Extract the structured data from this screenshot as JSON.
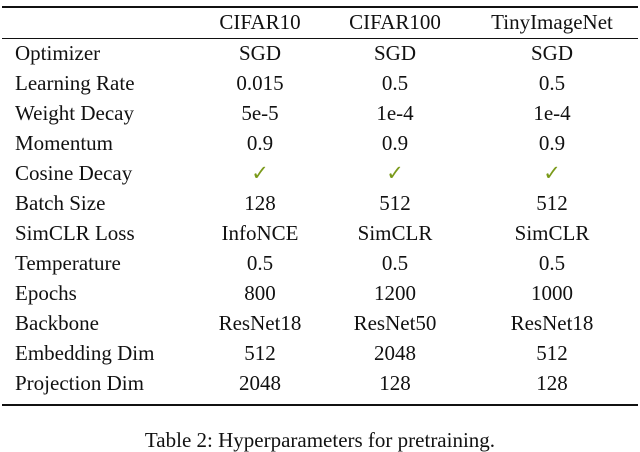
{
  "table": {
    "columns": [
      "CIFAR10",
      "CIFAR100",
      "TinyImageNet"
    ],
    "rows": [
      [
        "Optimizer",
        "SGD",
        "SGD",
        "SGD"
      ],
      [
        "Learning Rate",
        "0.015",
        "0.5",
        "0.5"
      ],
      [
        "Weight Decay",
        "5e-5",
        "1e-4",
        "1e-4"
      ],
      [
        "Momentum",
        "0.9",
        "0.9",
        "0.9"
      ],
      [
        "Cosine Decay",
        "✓",
        "✓",
        "✓"
      ],
      [
        "Batch Size",
        "128",
        "512",
        "512"
      ],
      [
        "SimCLR Loss",
        "InfoNCE",
        "SimCLR",
        "SimCLR"
      ],
      [
        "Temperature",
        "0.5",
        "0.5",
        "0.5"
      ],
      [
        "Epochs",
        "800",
        "1200",
        "1000"
      ],
      [
        "Backbone",
        "ResNet18",
        "ResNet50",
        "ResNet18"
      ],
      [
        "Embedding Dim",
        "512",
        "2048",
        "512"
      ],
      [
        "Projection Dim",
        "2048",
        "128",
        "128"
      ]
    ],
    "caption": "Table 2: Hyperparameters for pretraining."
  }
}
